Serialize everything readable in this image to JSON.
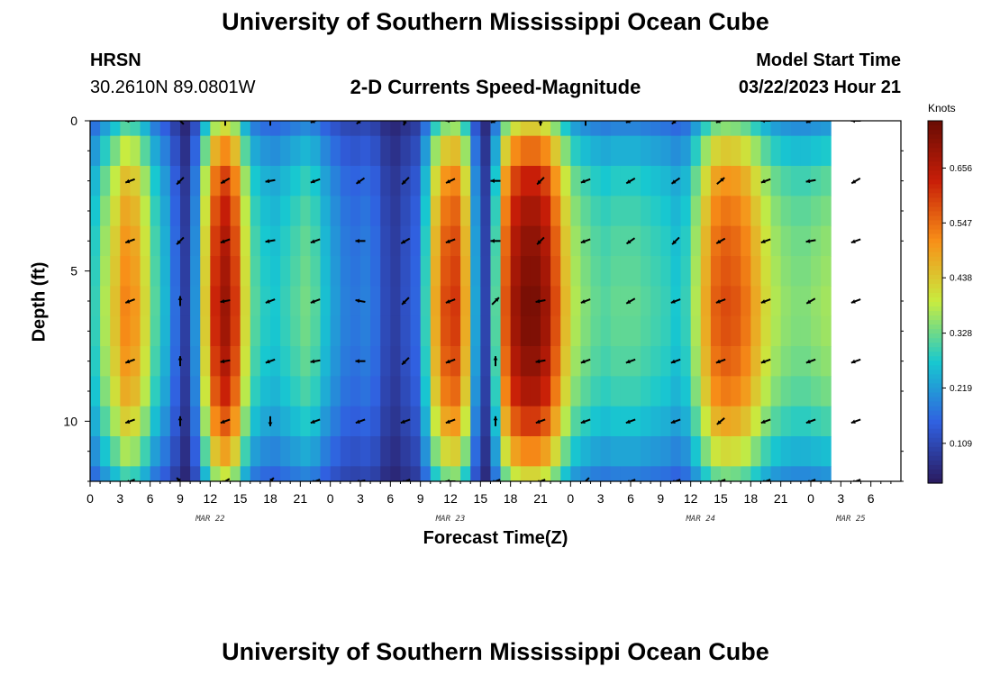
{
  "header": {
    "title": "University of Southern Mississippi Ocean Cube",
    "station": "HRSN",
    "coords": "30.2610N  89.0801W",
    "plot_title": "2-D Currents Speed-Magnitude",
    "model_start_label": "Model Start Time",
    "model_start_value": "03/22/2023 Hour 21"
  },
  "footer": {
    "title": "University of Southern Mississippi Ocean Cube"
  },
  "chart_data": {
    "type": "heatmap",
    "title": "2-D Currents Speed-Magnitude",
    "xlabel": "Forecast Time(Z)",
    "ylabel": "Depth (ft)",
    "colorbar_label": "Knots",
    "colorbar_ticks": [
      "0.109",
      "0.219",
      "0.328",
      "0.438",
      "0.547",
      "0.656"
    ],
    "colorbar_range": [
      0.03,
      0.75
    ],
    "colormap": [
      "#2a1a5e",
      "#3060e0",
      "#18c8d0",
      "#c8ec40",
      "#f89018",
      "#c81e08",
      "#680c04"
    ],
    "x_range_hours": [
      0,
      81
    ],
    "y_range_ft": [
      0,
      12
    ],
    "x_tick_labels": [
      "0",
      "3",
      "6",
      "9",
      "12",
      "15",
      "18",
      "21",
      "0",
      "3",
      "6",
      "9",
      "12",
      "15",
      "18",
      "21",
      "0",
      "3",
      "6",
      "9",
      "12",
      "15",
      "18",
      "21",
      "0",
      "3",
      "6"
    ],
    "y_tick_labels": [
      "0",
      "5",
      "10"
    ],
    "date_labels": [
      {
        "hour": 12,
        "label": "MAR 22"
      },
      {
        "hour": 36,
        "label": "MAR 23"
      },
      {
        "hour": 61,
        "label": "MAR 24"
      },
      {
        "hour": 76,
        "label": "MAR 25"
      }
    ],
    "depth_rows": [
      0,
      1,
      2,
      3,
      4,
      5,
      6,
      7,
      8,
      9,
      10,
      11,
      12
    ],
    "speed_profile_by_hour": [
      {
        "hour": 0,
        "v": 0.28
      },
      {
        "hour": 1,
        "v": 0.36
      },
      {
        "hour": 2,
        "v": 0.43
      },
      {
        "hour": 3,
        "v": 0.5
      },
      {
        "hour": 4,
        "v": 0.48
      },
      {
        "hour": 5,
        "v": 0.4
      },
      {
        "hour": 6,
        "v": 0.3
      },
      {
        "hour": 7,
        "v": 0.24
      },
      {
        "hour": 8,
        "v": 0.16
      },
      {
        "hour": 9,
        "v": 0.09
      },
      {
        "hour": 10,
        "v": 0.2
      },
      {
        "hour": 11,
        "v": 0.42
      },
      {
        "hour": 12,
        "v": 0.6
      },
      {
        "hour": 13,
        "v": 0.66
      },
      {
        "hour": 14,
        "v": 0.58
      },
      {
        "hour": 15,
        "v": 0.4
      },
      {
        "hour": 16,
        "v": 0.3
      },
      {
        "hour": 17,
        "v": 0.27
      },
      {
        "hour": 18,
        "v": 0.26
      },
      {
        "hour": 19,
        "v": 0.28
      },
      {
        "hour": 20,
        "v": 0.3
      },
      {
        "hour": 21,
        "v": 0.32
      },
      {
        "hour": 22,
        "v": 0.3
      },
      {
        "hour": 23,
        "v": 0.25
      },
      {
        "hour": 24,
        "v": 0.21
      },
      {
        "hour": 25,
        "v": 0.18
      },
      {
        "hour": 26,
        "v": 0.17
      },
      {
        "hour": 27,
        "v": 0.18
      },
      {
        "hour": 28,
        "v": 0.16
      },
      {
        "hour": 29,
        "v": 0.11
      },
      {
        "hour": 30,
        "v": 0.09
      },
      {
        "hour": 31,
        "v": 0.12
      },
      {
        "hour": 32,
        "v": 0.15
      },
      {
        "hour": 33,
        "v": 0.28
      },
      {
        "hour": 34,
        "v": 0.46
      },
      {
        "hour": 35,
        "v": 0.56
      },
      {
        "hour": 36,
        "v": 0.58
      },
      {
        "hour": 37,
        "v": 0.46
      },
      {
        "hour": 38,
        "v": 0.22
      },
      {
        "hour": 39,
        "v": 0.1
      },
      {
        "hour": 40,
        "v": 0.3
      },
      {
        "hour": 41,
        "v": 0.55
      },
      {
        "hour": 42,
        "v": 0.66
      },
      {
        "hour": 43,
        "v": 0.7
      },
      {
        "hour": 44,
        "v": 0.7
      },
      {
        "hour": 45,
        "v": 0.66
      },
      {
        "hour": 46,
        "v": 0.56
      },
      {
        "hour": 47,
        "v": 0.44
      },
      {
        "hour": 48,
        "v": 0.36
      },
      {
        "hour": 49,
        "v": 0.33
      },
      {
        "hour": 50,
        "v": 0.31
      },
      {
        "hour": 51,
        "v": 0.3
      },
      {
        "hour": 52,
        "v": 0.31
      },
      {
        "hour": 53,
        "v": 0.31
      },
      {
        "hour": 54,
        "v": 0.31
      },
      {
        "hour": 55,
        "v": 0.3
      },
      {
        "hour": 56,
        "v": 0.29
      },
      {
        "hour": 57,
        "v": 0.28
      },
      {
        "hour": 58,
        "v": 0.26
      },
      {
        "hour": 59,
        "v": 0.28
      },
      {
        "hour": 60,
        "v": 0.36
      },
      {
        "hour": 61,
        "v": 0.46
      },
      {
        "hour": 62,
        "v": 0.54
      },
      {
        "hour": 63,
        "v": 0.56
      },
      {
        "hour": 64,
        "v": 0.55
      },
      {
        "hour": 65,
        "v": 0.52
      },
      {
        "hour": 66,
        "v": 0.46
      },
      {
        "hour": 67,
        "v": 0.4
      },
      {
        "hour": 68,
        "v": 0.36
      },
      {
        "hour": 69,
        "v": 0.34
      },
      {
        "hour": 70,
        "v": 0.33
      },
      {
        "hour": 71,
        "v": 0.33
      },
      {
        "hour": 72,
        "v": 0.34
      },
      {
        "hour": 73,
        "v": 0.35
      }
    ],
    "depth_profile_by_ft": [
      {
        "ft": 0,
        "f": 0.62
      },
      {
        "ft": 1,
        "f": 0.78
      },
      {
        "ft": 2,
        "f": 0.9
      },
      {
        "ft": 3,
        "f": 0.96
      },
      {
        "ft": 4,
        "f": 1.0
      },
      {
        "ft": 5,
        "f": 1.02
      },
      {
        "ft": 6,
        "f": 1.04
      },
      {
        "ft": 7,
        "f": 1.03
      },
      {
        "ft": 8,
        "f": 1.0
      },
      {
        "ft": 9,
        "f": 0.95
      },
      {
        "ft": 10,
        "f": 0.86
      },
      {
        "ft": 11,
        "f": 0.74
      },
      {
        "ft": 12,
        "f": 0.6
      }
    ],
    "vector_depths_ft": [
      0,
      2,
      4,
      6,
      8,
      10,
      12
    ],
    "vector_hours": [
      4,
      9,
      13.5,
      18,
      22.5,
      27,
      31.5,
      36,
      40.5,
      45,
      49.5,
      54,
      58.5,
      63,
      67.5,
      72,
      76.5
    ],
    "vector_angles_deg": [
      [
        180,
        135,
        90,
        90,
        200,
        220,
        250,
        180,
        200,
        270,
        90,
        200,
        220,
        200,
        180,
        200,
        180
      ],
      [
        200,
        225,
        210,
        190,
        200,
        215,
        225,
        205,
        180,
        225,
        200,
        210,
        215,
        40,
        200,
        190,
        210
      ],
      [
        200,
        225,
        200,
        190,
        200,
        180,
        210,
        200,
        180,
        225,
        200,
        215,
        225,
        210,
        200,
        190,
        200
      ],
      [
        200,
        90,
        190,
        200,
        200,
        170,
        225,
        200,
        45,
        190,
        200,
        210,
        200,
        200,
        200,
        210,
        200
      ],
      [
        200,
        90,
        190,
        200,
        190,
        180,
        225,
        200,
        90,
        190,
        200,
        200,
        200,
        200,
        200,
        200,
        200
      ],
      [
        200,
        90,
        200,
        270,
        200,
        200,
        200,
        200,
        90,
        200,
        200,
        200,
        200,
        220,
        200,
        200,
        200
      ],
      [
        200,
        135,
        210,
        45,
        200,
        190,
        200,
        180,
        200,
        200,
        225,
        200,
        200,
        200,
        200,
        200,
        200
      ]
    ]
  }
}
